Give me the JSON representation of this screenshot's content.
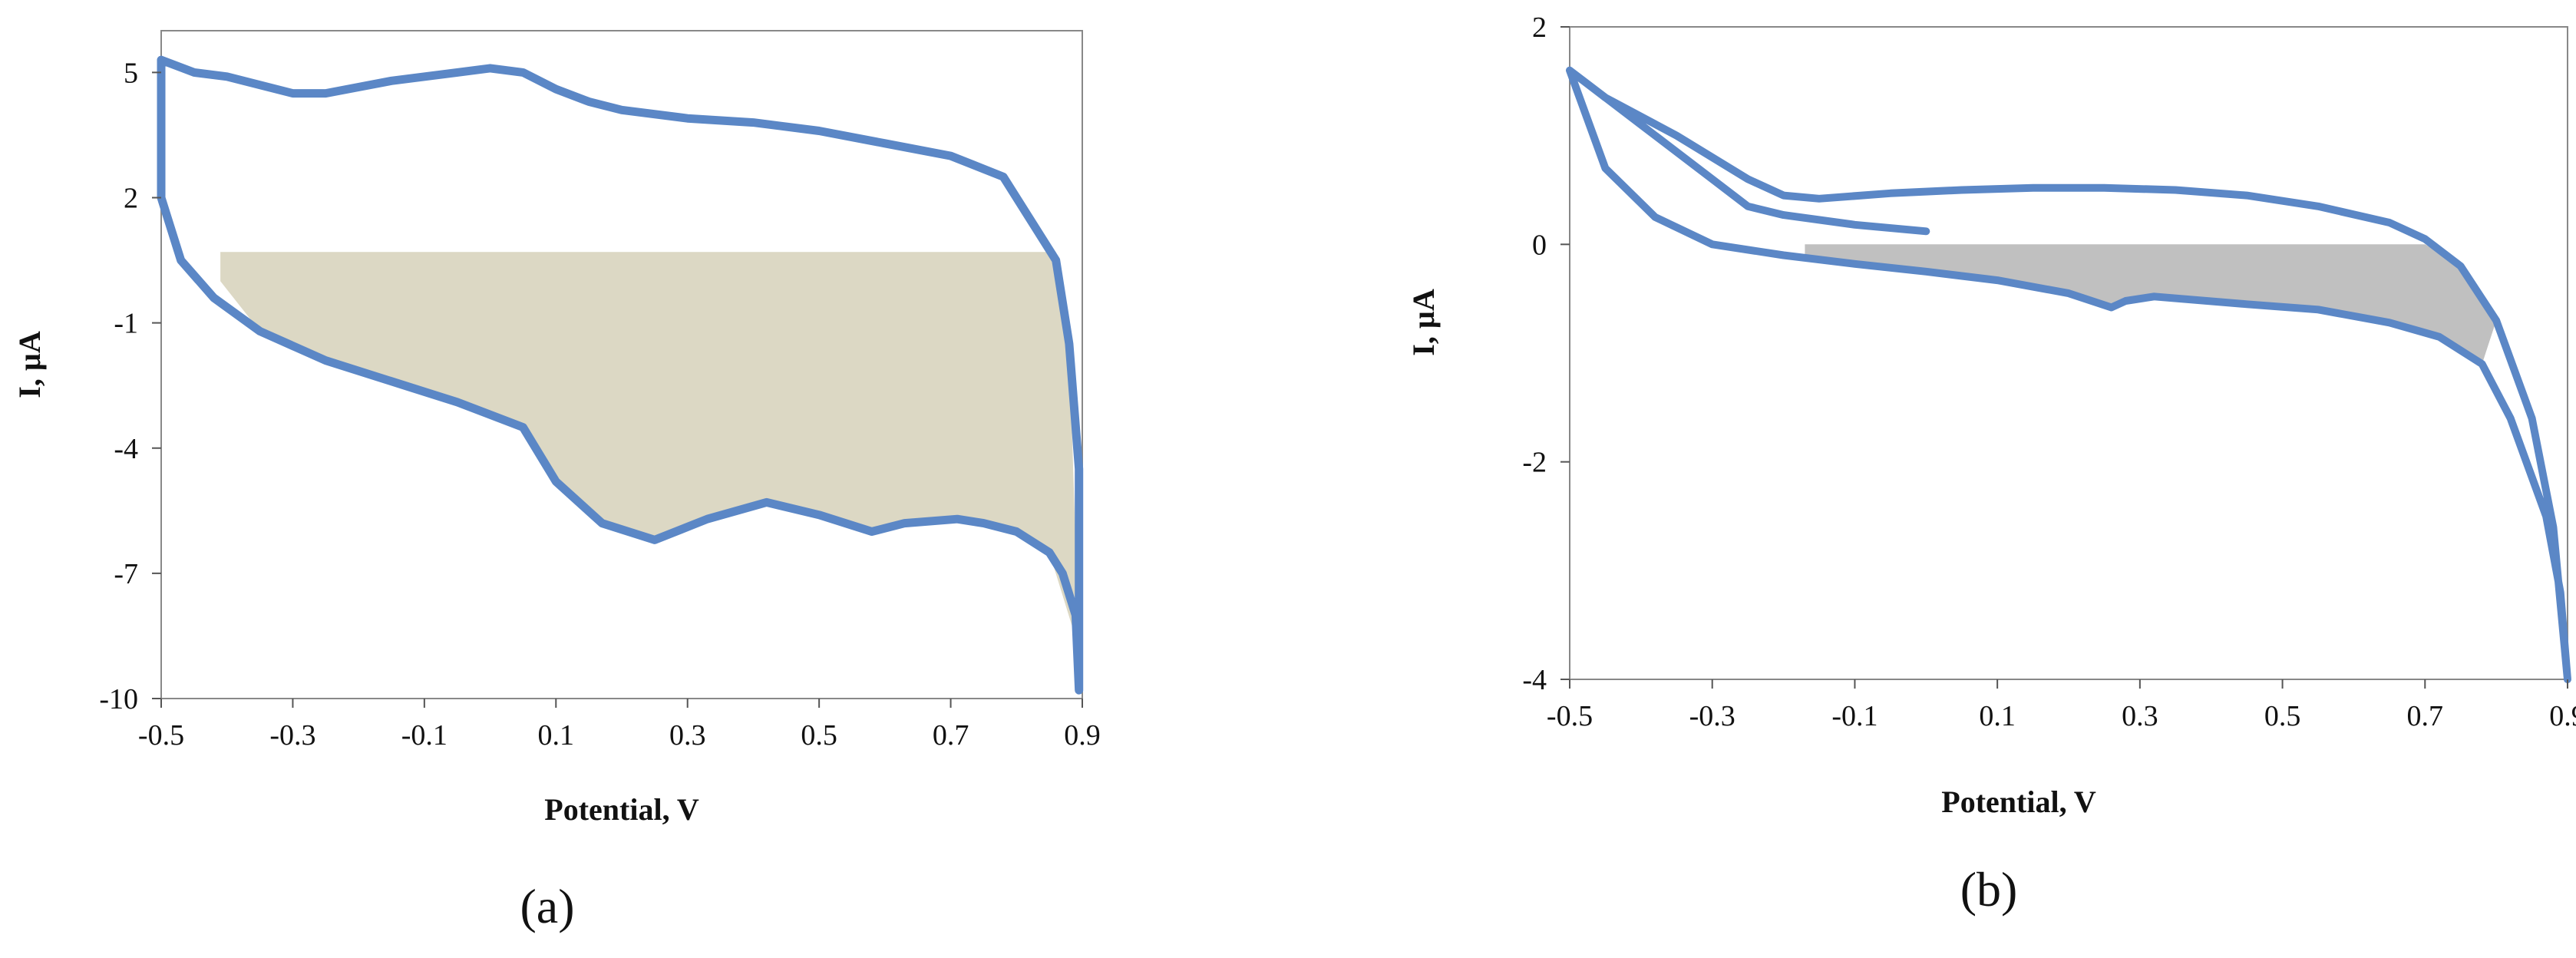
{
  "chart_data": [
    {
      "type": "line",
      "panel_label": "(a)",
      "xlabel": "Potential, V",
      "ylabel": "I, µA",
      "xlim": [
        -0.5,
        0.9
      ],
      "ylim": [
        -10,
        6
      ],
      "x_ticks": [
        -0.5,
        -0.3,
        -0.1,
        0.1,
        0.3,
        0.5,
        0.7,
        0.9
      ],
      "y_ticks": [
        5,
        2,
        -1,
        -4,
        -7,
        -10
      ],
      "x_tick_labels": [
        "-0.5",
        "-0.3",
        "-0.1",
        "0.1",
        "0.3",
        "0.5",
        "0.7",
        "0.9"
      ],
      "y_tick_labels": [
        "5",
        "2",
        "-1",
        "-4",
        "-7",
        "-10"
      ],
      "grid": false,
      "colors": {
        "curve": "#5b87c6",
        "fill": "#dcd8c4"
      },
      "series": [
        {
          "x": [
            -0.5,
            -0.45,
            -0.4,
            -0.3,
            -0.25,
            -0.15,
            -0.05,
            0.0,
            0.05,
            0.1,
            0.15,
            0.2,
            0.3,
            0.4,
            0.5,
            0.6,
            0.7,
            0.78,
            0.82,
            0.86,
            0.88,
            0.895,
            0.895,
            0.89,
            0.87,
            0.85,
            0.8,
            0.75,
            0.71,
            0.63,
            0.58,
            0.5,
            0.42,
            0.33,
            0.25,
            0.17,
            0.1,
            0.05,
            -0.05,
            -0.15,
            -0.25,
            -0.35,
            -0.42,
            -0.47,
            -0.5,
            -0.5
          ],
          "y": [
            5.3,
            5.0,
            4.9,
            4.5,
            4.5,
            4.8,
            5.0,
            5.1,
            5.0,
            4.6,
            4.3,
            4.1,
            3.9,
            3.8,
            3.6,
            3.3,
            3.0,
            2.5,
            1.5,
            0.5,
            -1.5,
            -4.5,
            -9.8,
            -8.0,
            -7.0,
            -6.5,
            -6.0,
            -5.8,
            -5.7,
            -5.8,
            -6.0,
            -5.6,
            -5.3,
            -5.7,
            -6.2,
            -5.8,
            -4.8,
            -3.5,
            -2.9,
            -2.4,
            -1.9,
            -1.2,
            -0.4,
            0.5,
            2.0,
            5.3
          ]
        }
      ],
      "shaded_region": {
        "level": 0.7,
        "x": [
          -0.41,
          0.86,
          0.88,
          0.895,
          0.85,
          0.8,
          0.75,
          0.71,
          0.63,
          0.58,
          0.5,
          0.42,
          0.33,
          0.25,
          0.17,
          0.1,
          0.05,
          -0.05,
          -0.15,
          -0.25,
          -0.35,
          -0.41
        ],
        "y": [
          0.7,
          0.7,
          -1.5,
          -8.8,
          -6.5,
          -6.0,
          -5.8,
          -5.7,
          -5.8,
          -6.0,
          -5.6,
          -5.3,
          -5.7,
          -6.2,
          -5.8,
          -4.8,
          -3.5,
          -2.9,
          -2.4,
          -1.9,
          -1.2,
          0.0
        ]
      }
    },
    {
      "type": "line",
      "panel_label": "(b)",
      "xlabel": "Potential,  V",
      "ylabel": "I, µA",
      "xlim": [
        -0.5,
        0.9
      ],
      "ylim": [
        -4,
        2
      ],
      "x_ticks": [
        -0.5,
        -0.3,
        -0.1,
        0.1,
        0.3,
        0.5,
        0.7,
        0.9
      ],
      "y_ticks": [
        2,
        0,
        -2,
        -4
      ],
      "x_tick_labels": [
        "-0.5",
        "-0.3",
        "-0.1",
        "0.1",
        "0.3",
        "0.5",
        "0.7",
        "0.9"
      ],
      "y_tick_labels": [
        "2",
        "0",
        "-2",
        "-4"
      ],
      "grid": false,
      "colors": {
        "curve": "#5b87c6",
        "fill": "#c0c0c0"
      },
      "series": [
        {
          "x": [
            -0.5,
            -0.45,
            -0.35,
            -0.25,
            -0.2,
            -0.15,
            -0.05,
            0.05,
            0.15,
            0.25,
            0.35,
            0.45,
            0.55,
            0.65,
            0.7,
            0.75,
            0.8,
            0.85,
            0.88,
            0.9,
            0.89,
            0.87,
            0.82,
            0.78,
            0.72,
            0.65,
            0.55,
            0.45,
            0.32,
            0.28,
            0.26,
            0.2,
            0.1,
            0.0,
            -0.1,
            -0.2,
            -0.3,
            -0.38,
            -0.45,
            -0.5,
            -0.48,
            -0.4,
            -0.3,
            -0.25,
            -0.2,
            -0.1,
            0.0
          ],
          "y": [
            1.6,
            1.35,
            1.0,
            0.6,
            0.45,
            0.42,
            0.47,
            0.5,
            0.52,
            0.52,
            0.5,
            0.45,
            0.35,
            0.2,
            0.05,
            -0.2,
            -0.7,
            -1.6,
            -2.6,
            -4.0,
            -3.2,
            -2.5,
            -1.6,
            -1.1,
            -0.85,
            -0.72,
            -0.6,
            -0.55,
            -0.48,
            -0.52,
            -0.58,
            -0.45,
            -0.33,
            -0.25,
            -0.18,
            -0.1,
            0.0,
            0.25,
            0.7,
            1.6,
            1.5,
            1.1,
            0.6,
            0.35,
            0.27,
            0.18,
            0.12
          ]
        }
      ],
      "shaded_region": {
        "level": 0.0,
        "x": [
          -0.17,
          0.7,
          0.75,
          0.8,
          0.78,
          0.72,
          0.65,
          0.55,
          0.45,
          0.32,
          0.28,
          0.26,
          0.2,
          0.1,
          0.0,
          -0.1,
          -0.17
        ],
        "y": [
          0.0,
          0.0,
          -0.2,
          -0.7,
          -1.1,
          -0.85,
          -0.72,
          -0.6,
          -0.55,
          -0.48,
          -0.52,
          -0.58,
          -0.45,
          -0.33,
          -0.25,
          -0.18,
          -0.12
        ]
      }
    }
  ]
}
